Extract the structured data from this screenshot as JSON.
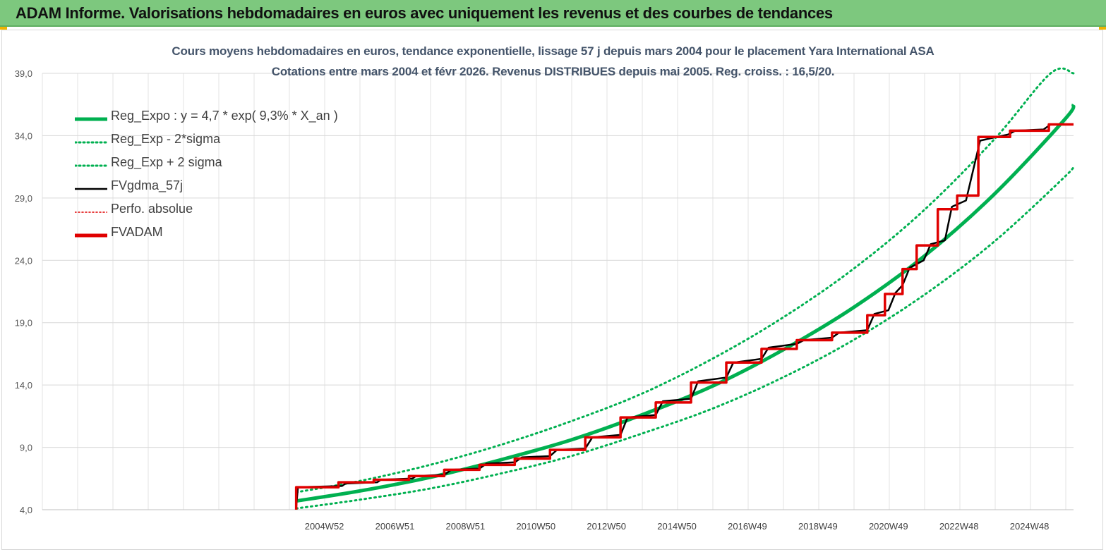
{
  "header": {
    "title": "ADAM Informe. Valorisations hebdomadaires en euros avec uniquement les revenus et des courbes de tendances"
  },
  "chart_data": {
    "type": "line",
    "title": "Cours moyens hebdomadaires en euros, tendance exponentielle, lissage 57 j depuis mars 2004 pour le placement Yara International ASA",
    "subtitle": "Cotations entre mars 2004 et févr 2026. Revenus DISTRIBUES depuis mai 2005. Reg. croiss. : 16,5/20.",
    "ylim": [
      4.0,
      39.0
    ],
    "y_ticks": [
      "39,0",
      "34,0",
      "29,0",
      "24,0",
      "19,0",
      "14,0",
      "9,0",
      "4,0"
    ],
    "y_tick_values": [
      39,
      34,
      29,
      24,
      19,
      14,
      9,
      4
    ],
    "x_tick_labels": [
      "2004W52",
      "2006W51",
      "2008W51",
      "2010W50",
      "2012W50",
      "2014W50",
      "2016W49",
      "2018W49",
      "2020W49",
      "2022W48",
      "2024W48"
    ],
    "x_tick_years": [
      2005.0,
      2007.0,
      2009.0,
      2011.0,
      2013.0,
      2015.0,
      2017.0,
      2019.0,
      2021.0,
      2023.0,
      2025.0
    ],
    "xlim_years": [
      1997.0,
      2026.25
    ],
    "grid": true,
    "legend_position": "top-left",
    "legend": [
      {
        "key": "reg",
        "label": "Reg_Expo : y = 4,7 * exp( 9,3% *  X_an )",
        "color": "#00b050",
        "style": "solid-thick"
      },
      {
        "key": "low",
        "label": "Reg_Exp - 2*sigma",
        "color": "#00b050",
        "style": "dotted"
      },
      {
        "key": "high",
        "label": "Reg_Exp + 2 sigma",
        "color": "#00b050",
        "style": "dotted"
      },
      {
        "key": "fvg",
        "label": "FVgdma_57j",
        "color": "#000000",
        "style": "solid"
      },
      {
        "key": "perf",
        "label": "Perfo. absolue",
        "color": "#e00000",
        "style": "dotted-thin"
      },
      {
        "key": "fva",
        "label": "FVADAM",
        "color": "#e00000",
        "style": "solid-thick"
      }
    ],
    "series": [
      {
        "name": "Reg_Expo : y = 4,7 * exp( 9,3% *  X_an )",
        "x": [
          2004.2,
          2006.0,
          2008.0,
          2010.0,
          2012.0,
          2014.0,
          2016.0,
          2018.0,
          2020.0,
          2022.0,
          2024.0,
          2026.0,
          2026.25
        ],
        "y": [
          4.7,
          5.5,
          6.6,
          8.0,
          9.6,
          11.6,
          13.9,
          16.8,
          20.2,
          24.3,
          29.3,
          35.3,
          36.5
        ]
      },
      {
        "name": "Reg_Exp - 2*sigma",
        "x": [
          2004.2,
          2006.0,
          2008.0,
          2010.0,
          2012.0,
          2014.0,
          2016.0,
          2018.0,
          2020.0,
          2022.0,
          2024.0,
          2026.0,
          2026.25
        ],
        "y": [
          4.1,
          4.8,
          5.7,
          6.9,
          8.3,
          10.1,
          12.1,
          14.6,
          17.6,
          21.2,
          25.5,
          30.7,
          31.6
        ]
      },
      {
        "name": "Reg_Exp + 2 sigma",
        "x": [
          2004.2,
          2006.0,
          2008.0,
          2010.0,
          2012.0,
          2014.0,
          2016.0,
          2018.0,
          2020.0,
          2022.0,
          2024.0,
          2025.6,
          2026.25
        ],
        "y": [
          5.4,
          6.3,
          7.6,
          9.2,
          11.1,
          13.3,
          16.1,
          19.4,
          23.3,
          28.0,
          33.7,
          39.0,
          39.0
        ]
      },
      {
        "name": "FVgdma_57j",
        "x": [
          2004.2,
          2004.25,
          2005.5,
          2005.6,
          2006.5,
          2006.6,
          2007.5,
          2007.6,
          2008.4,
          2008.6,
          2009.4,
          2009.6,
          2010.4,
          2010.6,
          2011.4,
          2011.6,
          2012.4,
          2012.6,
          2013.4,
          2013.6,
          2014.4,
          2014.6,
          2015.4,
          2015.6,
          2016.4,
          2016.6,
          2017.4,
          2017.6,
          2018.4,
          2018.6,
          2019.4,
          2019.6,
          2020.4,
          2020.6,
          2021.0,
          2021.2,
          2021.4,
          2021.6,
          2022.0,
          2022.2,
          2022.6,
          2022.8,
          2023.2,
          2023.6,
          2024.4,
          2024.6,
          2025.4,
          2025.6,
          2026.25
        ],
        "y": [
          4.2,
          5.8,
          5.9,
          6.1,
          6.2,
          6.4,
          6.5,
          6.7,
          6.8,
          7.2,
          7.3,
          7.7,
          7.8,
          8.2,
          8.3,
          8.8,
          8.9,
          9.8,
          10.0,
          11.4,
          11.6,
          12.7,
          12.9,
          14.3,
          14.6,
          15.8,
          16.1,
          17.0,
          17.3,
          17.6,
          17.8,
          18.2,
          18.4,
          19.7,
          20.0,
          21.4,
          22.0,
          23.4,
          24.0,
          25.3,
          25.6,
          28.3,
          28.8,
          33.6,
          34.1,
          34.4,
          34.5,
          34.9,
          34.9
        ]
      },
      {
        "name": "FVADAM",
        "x": [
          2004.2,
          2004.2,
          2005.4,
          2005.4,
          2006.4,
          2006.4,
          2007.4,
          2007.4,
          2008.4,
          2008.4,
          2009.4,
          2009.4,
          2010.4,
          2010.4,
          2011.4,
          2011.4,
          2012.4,
          2012.4,
          2013.4,
          2013.4,
          2014.4,
          2014.4,
          2015.4,
          2015.4,
          2016.4,
          2016.4,
          2017.4,
          2017.4,
          2018.4,
          2018.4,
          2019.4,
          2019.4,
          2020.4,
          2020.4,
          2020.9,
          2020.9,
          2021.4,
          2021.4,
          2021.8,
          2021.8,
          2022.4,
          2022.4,
          2022.95,
          2022.95,
          2023.55,
          2023.55,
          2024.45,
          2024.45,
          2025.55,
          2025.55,
          2026.25
        ],
        "y": [
          4.0,
          5.8,
          5.8,
          6.2,
          6.2,
          6.4,
          6.4,
          6.7,
          6.7,
          7.2,
          7.2,
          7.6,
          7.6,
          8.1,
          8.1,
          8.8,
          8.8,
          9.8,
          9.8,
          11.4,
          11.4,
          12.6,
          12.6,
          14.2,
          14.2,
          15.8,
          15.8,
          16.9,
          16.9,
          17.6,
          17.6,
          18.2,
          18.2,
          19.6,
          19.6,
          21.3,
          21.3,
          23.3,
          23.3,
          25.2,
          25.2,
          28.1,
          28.1,
          29.2,
          29.2,
          33.9,
          33.9,
          34.4,
          34.4,
          34.9,
          34.9
        ]
      }
    ]
  }
}
